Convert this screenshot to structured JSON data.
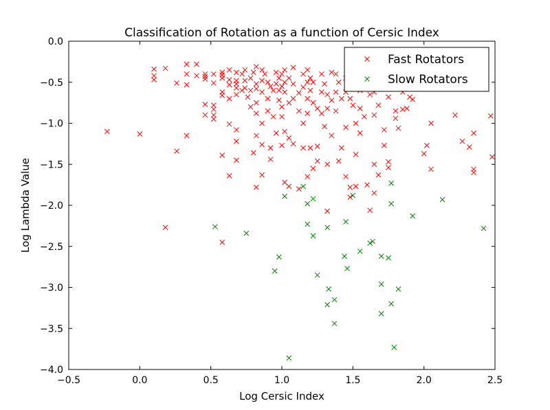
{
  "chart_data": {
    "type": "scatter",
    "title": "Classification of Rotation as a function of Cersic Index",
    "xlabel": "Log Cersic Index",
    "ylabel": "Log Lambda Value",
    "xlim": [
      -0.5,
      2.5
    ],
    "ylim": [
      -4.0,
      0.0
    ],
    "xticks": [
      -0.5,
      0.0,
      0.5,
      1.0,
      1.5,
      2.0,
      2.5
    ],
    "yticks": [
      0.0,
      -0.5,
      -1.0,
      -1.5,
      -2.0,
      -2.5,
      -3.0,
      -3.5,
      -4.0
    ],
    "xtick_labels": [
      "−0.5",
      "0.0",
      "0.5",
      "1.0",
      "1.5",
      "2.0",
      "2.5"
    ],
    "ytick_labels": [
      "0.0",
      "−0.5",
      "−1.0",
      "−1.5",
      "−2.0",
      "−2.5",
      "−3.0",
      "−3.5",
      "−4.0"
    ],
    "grid": false,
    "legend_position": "top-right",
    "series": [
      {
        "name": "Fast Rotators",
        "color": "#ff0000",
        "marker": "x",
        "points": [
          [
            -0.23,
            -1.1
          ],
          [
            0.0,
            -1.13
          ],
          [
            0.1,
            -0.34
          ],
          [
            0.1,
            -0.42
          ],
          [
            0.1,
            -0.47
          ],
          [
            0.18,
            -0.33
          ],
          [
            0.18,
            -2.27
          ],
          [
            0.26,
            -0.51
          ],
          [
            0.26,
            -1.34
          ],
          [
            0.33,
            -0.28
          ],
          [
            0.33,
            -0.4
          ],
          [
            0.33,
            -0.53
          ],
          [
            0.33,
            -1.15
          ],
          [
            0.4,
            -0.28
          ],
          [
            0.4,
            -0.42
          ],
          [
            0.46,
            -0.4
          ],
          [
            0.46,
            -0.43
          ],
          [
            0.46,
            -0.46
          ],
          [
            0.46,
            -0.77
          ],
          [
            0.46,
            -0.9
          ],
          [
            0.52,
            -0.4
          ],
          [
            0.52,
            -0.51
          ],
          [
            0.52,
            -0.78
          ],
          [
            0.52,
            -0.83
          ],
          [
            0.52,
            -0.9
          ],
          [
            0.52,
            -0.95
          ],
          [
            0.58,
            -0.38
          ],
          [
            0.58,
            -0.41
          ],
          [
            0.58,
            -0.45
          ],
          [
            0.58,
            -0.62
          ],
          [
            0.58,
            -0.66
          ],
          [
            0.58,
            -1.39
          ],
          [
            0.58,
            -2.45
          ],
          [
            0.63,
            -0.35
          ],
          [
            0.63,
            -0.47
          ],
          [
            0.63,
            -0.53
          ],
          [
            0.63,
            -0.7
          ],
          [
            0.63,
            -1.01
          ],
          [
            0.63,
            -1.64
          ],
          [
            0.68,
            -0.38
          ],
          [
            0.68,
            -0.48
          ],
          [
            0.68,
            -0.52
          ],
          [
            0.68,
            -0.57
          ],
          [
            0.68,
            -0.65
          ],
          [
            0.68,
            -1.08
          ],
          [
            0.68,
            -1.22
          ],
          [
            0.68,
            -1.45
          ],
          [
            0.72,
            -0.4
          ],
          [
            0.72,
            -0.6
          ],
          [
            0.74,
            -0.35
          ],
          [
            0.74,
            -0.48
          ],
          [
            0.74,
            -0.57
          ],
          [
            0.76,
            -0.68
          ],
          [
            0.78,
            -0.45
          ],
          [
            0.78,
            -0.6
          ],
          [
            0.78,
            -0.8
          ],
          [
            0.8,
            -0.38
          ],
          [
            0.8,
            -1.36
          ],
          [
            0.82,
            -0.31
          ],
          [
            0.82,
            -0.52
          ],
          [
            0.82,
            -0.58
          ],
          [
            0.82,
            -0.75
          ],
          [
            0.82,
            -0.88
          ],
          [
            0.82,
            -1.15
          ],
          [
            0.82,
            -1.78
          ],
          [
            0.86,
            -0.35
          ],
          [
            0.86,
            -0.48
          ],
          [
            0.86,
            -0.62
          ],
          [
            0.86,
            -1.0
          ],
          [
            0.86,
            -1.26
          ],
          [
            0.86,
            -1.63
          ],
          [
            0.88,
            -0.4
          ],
          [
            0.9,
            -0.5
          ],
          [
            0.9,
            -0.7
          ],
          [
            0.9,
            -0.85
          ],
          [
            0.92,
            -0.55
          ],
          [
            0.92,
            -1.3
          ],
          [
            0.92,
            -1.44
          ],
          [
            0.94,
            -0.6
          ],
          [
            0.94,
            -0.92
          ],
          [
            0.96,
            -0.38
          ],
          [
            0.96,
            -0.52
          ],
          [
            0.96,
            -1.12
          ],
          [
            0.98,
            -0.45
          ],
          [
            0.98,
            -0.6
          ],
          [
            0.98,
            -0.72
          ],
          [
            1.0,
            -0.4
          ],
          [
            1.0,
            -0.55
          ],
          [
            1.0,
            -0.8
          ],
          [
            1.0,
            -0.92
          ],
          [
            1.0,
            -1.27
          ],
          [
            1.02,
            -0.35
          ],
          [
            1.02,
            -0.5
          ],
          [
            1.02,
            -0.62
          ],
          [
            1.02,
            -1.1
          ],
          [
            1.02,
            -1.72
          ],
          [
            1.05,
            -0.45
          ],
          [
            1.05,
            -0.75
          ],
          [
            1.05,
            -1.18
          ],
          [
            1.05,
            -1.77
          ],
          [
            1.08,
            -0.32
          ],
          [
            1.08,
            -0.52
          ],
          [
            1.08,
            -0.7
          ],
          [
            1.08,
            -1.25
          ],
          [
            1.12,
            -0.63
          ],
          [
            1.12,
            -0.85
          ],
          [
            1.12,
            -1.8
          ],
          [
            1.15,
            -0.4
          ],
          [
            1.15,
            -0.56
          ],
          [
            1.15,
            -1.0
          ],
          [
            1.15,
            -1.3
          ],
          [
            1.18,
            -0.35
          ],
          [
            1.18,
            -0.5
          ],
          [
            1.18,
            -0.7
          ],
          [
            1.18,
            -0.88
          ],
          [
            1.18,
            -1.65
          ],
          [
            1.2,
            -0.45
          ],
          [
            1.2,
            -0.6
          ],
          [
            1.2,
            -1.3
          ],
          [
            1.22,
            -0.5
          ],
          [
            1.22,
            -0.75
          ],
          [
            1.22,
            -1.55
          ],
          [
            1.25,
            -0.82
          ],
          [
            1.25,
            -1.28
          ],
          [
            1.25,
            -1.46
          ],
          [
            1.28,
            -0.4
          ],
          [
            1.28,
            -0.62
          ],
          [
            1.28,
            -0.88
          ],
          [
            1.3,
            -0.52
          ],
          [
            1.3,
            -1.04
          ],
          [
            1.32,
            -0.65
          ],
          [
            1.32,
            -0.82
          ],
          [
            1.32,
            -1.5
          ],
          [
            1.32,
            -2.07
          ],
          [
            1.35,
            -0.38
          ],
          [
            1.35,
            -0.72
          ],
          [
            1.35,
            -1.15
          ],
          [
            1.38,
            -0.4
          ],
          [
            1.38,
            -0.62
          ],
          [
            1.38,
            -0.85
          ],
          [
            1.4,
            -0.5
          ],
          [
            1.4,
            -1.46
          ],
          [
            1.42,
            -0.7
          ],
          [
            1.42,
            -1.3
          ],
          [
            1.45,
            -0.45
          ],
          [
            1.45,
            -0.62
          ],
          [
            1.45,
            -1.05
          ],
          [
            1.45,
            -1.65
          ],
          [
            1.48,
            -0.7
          ],
          [
            1.48,
            -1.78
          ],
          [
            1.48,
            -1.9
          ],
          [
            1.5,
            -0.78
          ],
          [
            1.52,
            -0.5
          ],
          [
            1.52,
            -1.0
          ],
          [
            1.52,
            -1.38
          ],
          [
            1.52,
            -1.77
          ],
          [
            1.55,
            -0.6
          ],
          [
            1.55,
            -0.82
          ],
          [
            1.55,
            -1.12
          ],
          [
            1.58,
            -0.45
          ],
          [
            1.58,
            -0.92
          ],
          [
            1.6,
            -0.55
          ],
          [
            1.6,
            -1.75
          ],
          [
            1.62,
            -0.65
          ],
          [
            1.62,
            -2.06
          ],
          [
            1.65,
            -0.62
          ],
          [
            1.65,
            -0.9
          ],
          [
            1.65,
            -1.5
          ],
          [
            1.65,
            -1.85
          ],
          [
            1.68,
            -0.5
          ],
          [
            1.68,
            -0.78
          ],
          [
            1.68,
            -1.63
          ],
          [
            1.7,
            -0.55
          ],
          [
            1.72,
            -1.08
          ],
          [
            1.72,
            -1.27
          ],
          [
            1.75,
            -0.68
          ],
          [
            1.75,
            -1.47
          ],
          [
            1.75,
            -1.54
          ],
          [
            1.78,
            -0.42
          ],
          [
            1.8,
            -0.85
          ],
          [
            1.8,
            -0.94
          ],
          [
            1.82,
            -1.06
          ],
          [
            1.85,
            -0.83
          ],
          [
            1.85,
            -0.62
          ],
          [
            1.88,
            -0.82
          ],
          [
            1.9,
            -0.68
          ],
          [
            1.92,
            -0.71
          ],
          [
            2.0,
            -1.37
          ],
          [
            2.02,
            -1.27
          ],
          [
            2.05,
            -1.56
          ],
          [
            2.05,
            -1.0
          ],
          [
            2.22,
            -0.9
          ],
          [
            2.27,
            -1.22
          ],
          [
            2.32,
            -1.29
          ],
          [
            2.35,
            -1.12
          ],
          [
            2.35,
            -1.56
          ],
          [
            2.35,
            -1.6
          ],
          [
            2.47,
            -0.91
          ],
          [
            2.48,
            -1.41
          ]
        ]
      },
      {
        "name": "Slow Rotators",
        "color": "#008000",
        "marker": "x",
        "points": [
          [
            0.53,
            -2.26
          ],
          [
            0.75,
            -2.34
          ],
          [
            0.95,
            -2.8
          ],
          [
            0.98,
            -2.63
          ],
          [
            1.02,
            -1.89
          ],
          [
            1.05,
            -3.86
          ],
          [
            1.15,
            -1.77
          ],
          [
            1.18,
            -1.98
          ],
          [
            1.18,
            -2.23
          ],
          [
            1.22,
            -1.92
          ],
          [
            1.22,
            -2.37
          ],
          [
            1.25,
            -2.85
          ],
          [
            1.32,
            -2.27
          ],
          [
            1.32,
            -3.21
          ],
          [
            1.33,
            -3.02
          ],
          [
            1.37,
            -3.15
          ],
          [
            1.37,
            -3.44
          ],
          [
            1.44,
            -2.62
          ],
          [
            1.45,
            -2.2
          ],
          [
            1.46,
            -2.77
          ],
          [
            1.5,
            -1.88
          ],
          [
            1.55,
            -2.56
          ],
          [
            1.62,
            -2.46
          ],
          [
            1.64,
            -2.44
          ],
          [
            1.7,
            -2.62
          ],
          [
            1.7,
            -2.96
          ],
          [
            1.7,
            -3.32
          ],
          [
            1.75,
            -2.64
          ],
          [
            1.77,
            -1.73
          ],
          [
            1.77,
            -1.98
          ],
          [
            1.77,
            -3.2
          ],
          [
            1.79,
            -3.73
          ],
          [
            1.82,
            -3.02
          ],
          [
            1.92,
            -2.13
          ],
          [
            2.13,
            -1.93
          ],
          [
            2.42,
            -2.28
          ]
        ]
      }
    ]
  }
}
